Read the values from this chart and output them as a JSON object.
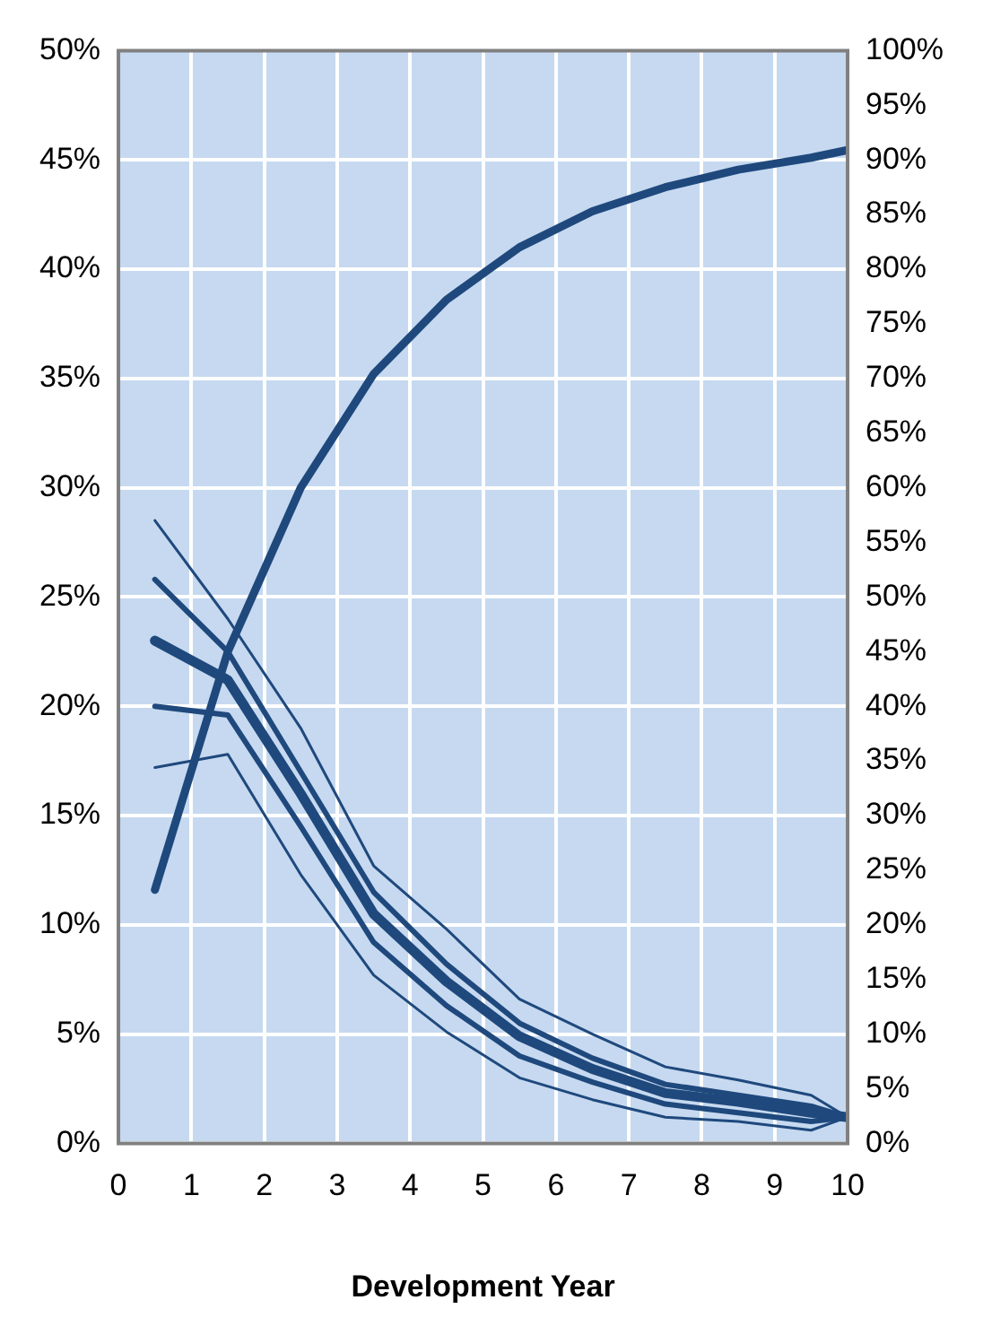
{
  "chart_data": {
    "type": "line",
    "xlabel": "Development Year",
    "x": [
      0.5,
      1.5,
      2.5,
      3.5,
      4.5,
      5.5,
      6.5,
      7.5,
      8.5,
      9.5,
      10
    ],
    "xlim": [
      0,
      10
    ],
    "xticks": [
      0,
      1,
      2,
      3,
      4,
      5,
      6,
      7,
      8,
      9,
      10
    ],
    "ylim": [
      0,
      50
    ],
    "yticks": [
      {
        "value": 0,
        "label": "0%"
      },
      {
        "value": 5,
        "label": "5%"
      },
      {
        "value": 10,
        "label": "10%"
      },
      {
        "value": 15,
        "label": "15%"
      },
      {
        "value": 20,
        "label": "20%"
      },
      {
        "value": 25,
        "label": "25%"
      },
      {
        "value": 30,
        "label": "30%"
      },
      {
        "value": 35,
        "label": "35%"
      },
      {
        "value": 40,
        "label": "40%"
      },
      {
        "value": 45,
        "label": "45%"
      },
      {
        "value": 50,
        "label": "50%"
      }
    ],
    "y2lim": [
      0,
      100
    ],
    "y2ticks": [
      {
        "value": 0,
        "label": "0%"
      },
      {
        "value": 5,
        "label": "5%"
      },
      {
        "value": 10,
        "label": "10%"
      },
      {
        "value": 15,
        "label": "15%"
      },
      {
        "value": 20,
        "label": "20%"
      },
      {
        "value": 25,
        "label": "25%"
      },
      {
        "value": 30,
        "label": "30%"
      },
      {
        "value": 35,
        "label": "35%"
      },
      {
        "value": 40,
        "label": "40%"
      },
      {
        "value": 45,
        "label": "45%"
      },
      {
        "value": 50,
        "label": "50%"
      },
      {
        "value": 55,
        "label": "55%"
      },
      {
        "value": 60,
        "label": "60%"
      },
      {
        "value": 65,
        "label": "65%"
      },
      {
        "value": 70,
        "label": "70%"
      },
      {
        "value": 75,
        "label": "75%"
      },
      {
        "value": 80,
        "label": "80%"
      },
      {
        "value": 85,
        "label": "85%"
      },
      {
        "value": 90,
        "label": "90%"
      },
      {
        "value": 95,
        "label": "95%"
      },
      {
        "value": 100,
        "label": "100%"
      }
    ],
    "series": [
      {
        "color": "#1f497d",
        "values": [
          28.5,
          24.0,
          19.0,
          12.7,
          9.8,
          6.6,
          5.0,
          3.5,
          2.9,
          2.2,
          1.2
        ]
      },
      {
        "color": "#1f497d",
        "values": [
          25.8,
          22.5,
          17.0,
          11.5,
          8.2,
          5.5,
          3.9,
          2.7,
          2.2,
          1.7,
          1.2
        ]
      },
      {
        "color": "#1f497d",
        "values": [
          23.0,
          21.2,
          16.0,
          10.5,
          7.4,
          4.9,
          3.4,
          2.3,
          1.9,
          1.4,
          1.2
        ]
      },
      {
        "color": "#1f497d",
        "values": [
          20.0,
          19.6,
          14.5,
          9.2,
          6.3,
          4.0,
          2.8,
          1.8,
          1.4,
          1.0,
          1.2
        ]
      },
      {
        "color": "#1f497d",
        "values": [
          17.2,
          17.8,
          12.3,
          7.7,
          5.1,
          3.0,
          2.0,
          1.2,
          1.0,
          0.6,
          1.2
        ]
      },
      {
        "color": "#1f497d",
        "axis": "y2",
        "values": [
          23.2,
          45,
          60,
          70.4,
          77.2,
          82,
          85.3,
          87.5,
          89.1,
          90.2,
          90.9
        ]
      }
    ],
    "grid": true,
    "legend": false,
    "marker": "none",
    "line_style": "solid"
  }
}
